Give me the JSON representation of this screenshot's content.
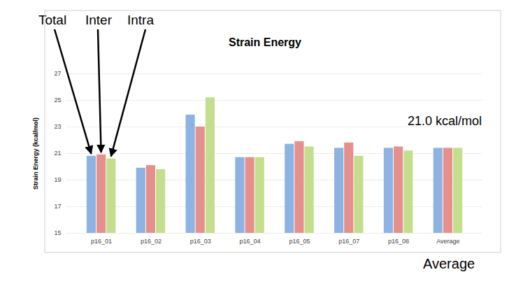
{
  "chart_data": {
    "type": "bar",
    "title": "Strain Energy",
    "y_label": "Strain Energy (kcal/mol)",
    "categories": [
      "p16_01",
      "p16_02",
      "p16_03",
      "p16_04",
      "p16_05",
      "p16_07",
      "p16_08",
      "Average"
    ],
    "series": [
      {
        "name": "Total",
        "color": "#8db3e2",
        "values": [
          20.8,
          19.9,
          23.9,
          20.7,
          21.7,
          21.4,
          21.4,
          21.4
        ]
      },
      {
        "name": "Inter",
        "color": "#e6908e",
        "values": [
          20.9,
          20.1,
          23.0,
          20.7,
          21.9,
          21.8,
          21.5,
          21.4
        ]
      },
      {
        "name": "Intra",
        "color": "#c3df8e",
        "values": [
          20.6,
          19.8,
          25.2,
          20.7,
          21.5,
          20.8,
          21.2,
          21.4
        ]
      }
    ],
    "ylim": [
      15,
      27
    ],
    "yticks": [
      15,
      17,
      19,
      21,
      23,
      25,
      27
    ],
    "grid": true,
    "annotations": [
      "21.0 kcal/mol",
      "Average"
    ]
  }
}
